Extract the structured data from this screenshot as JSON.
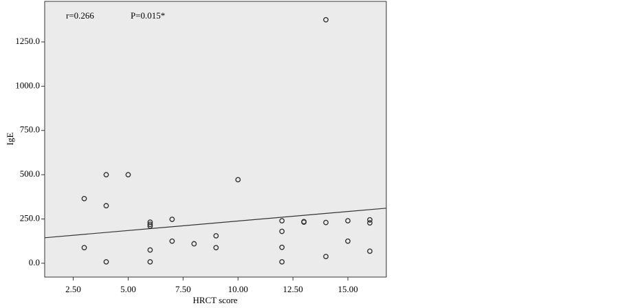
{
  "chart_data": {
    "type": "scatter",
    "x_label": "HRCT score",
    "y_label": "IgE",
    "annotations": [
      "r=0.266",
      "P=0.015*"
    ],
    "x": [
      14,
      4,
      5,
      10,
      3,
      4,
      6,
      6,
      6,
      6,
      6,
      7,
      7,
      8,
      9,
      9,
      3,
      4,
      12,
      12,
      12,
      12,
      13,
      13,
      14,
      14,
      15,
      15,
      16,
      16,
      16
    ],
    "values": [
      1375,
      500,
      500,
      472,
      365,
      325,
      232,
      220,
      210,
      75,
      8,
      248,
      125,
      110,
      155,
      88,
      88,
      8,
      240,
      180,
      90,
      8,
      235,
      232,
      230,
      38,
      240,
      125,
      245,
      228,
      68
    ],
    "color": "#333333",
    "trend_line": {
      "x": [
        1.2,
        16.75
      ],
      "y": [
        144,
        311
      ]
    },
    "xlim": [
      1.2,
      16.75
    ],
    "xticks": [
      {
        "value": 2.5,
        "label": "2.50"
      },
      {
        "value": 5,
        "label": "5.00"
      },
      {
        "value": 7.5,
        "label": "7.50"
      },
      {
        "value": 10,
        "label": "10.00"
      },
      {
        "value": 12.5,
        "label": "12.50"
      },
      {
        "value": 15,
        "label": "15.00"
      }
    ],
    "ylim": [
      -78,
      1479
    ],
    "yticks": [
      {
        "value": 0,
        "label": "0.0"
      },
      {
        "value": 250,
        "label": "250.0"
      },
      {
        "value": 500,
        "label": "500.0"
      },
      {
        "value": 750,
        "label": "750.0"
      },
      {
        "value": 1000,
        "label": "1000.0"
      },
      {
        "value": 1250,
        "label": "1250.0"
      }
    ]
  }
}
